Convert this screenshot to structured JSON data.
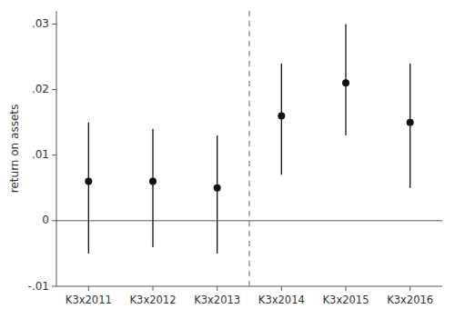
{
  "chart_data": {
    "type": "scatter",
    "categories": [
      "K3x2011",
      "K3x2012",
      "K3x2013",
      "K3x2014",
      "K3x2015",
      "K3x2016"
    ],
    "values": [
      0.006,
      0.006,
      0.005,
      0.016,
      0.021,
      0.015
    ],
    "ci_lower": [
      -0.005,
      -0.004,
      -0.005,
      0.007,
      0.013,
      0.005
    ],
    "ci_upper": [
      0.015,
      0.014,
      0.013,
      0.024,
      0.03,
      0.024
    ],
    "ylim": [
      -0.01,
      0.032
    ],
    "yticks": [
      {
        "value": -0.01,
        "label": "-.01"
      },
      0,
      {
        "value": 0.01,
        "label": ".01"
      },
      {
        "value": 0.02,
        "label": ".02"
      },
      {
        "value": 0.03,
        "label": ".03"
      }
    ],
    "ylabel": "return on assets",
    "hline": 0,
    "vline": 3.5,
    "color": "#111111",
    "grid": false
  }
}
